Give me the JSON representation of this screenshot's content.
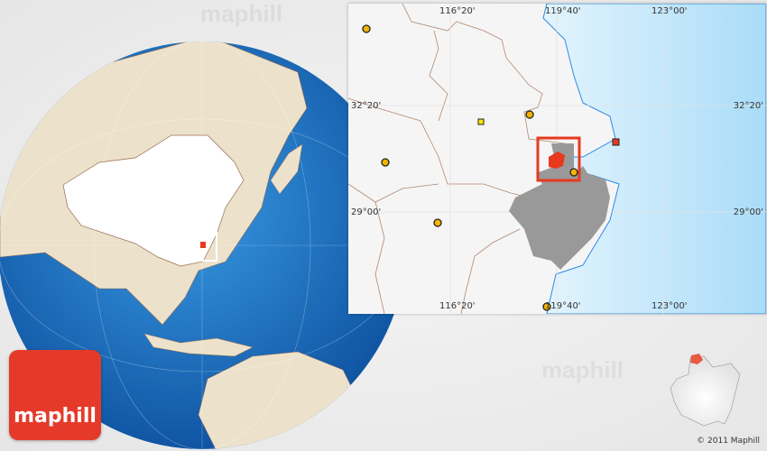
{
  "watermark": "maphill",
  "logo": {
    "text": "maphill",
    "color": "#e53a2a"
  },
  "copyright": "© 2011 Maphill",
  "inset_map": {
    "longitude_labels_top": [
      "116°20'",
      "119°40'",
      "123°00'"
    ],
    "longitude_labels_bottom": [
      "116°20'",
      "119°40'",
      "123°00'"
    ],
    "latitude_labels_left": [
      "32°20'",
      "29°00'"
    ],
    "latitude_labels_right": [
      "32°20'",
      "29°00'"
    ],
    "province_fill": "#999999",
    "highlight_fill": "#e8391f",
    "highlight_frame": "#e8391f",
    "sea_color": "#bfe6fb"
  },
  "colors": {
    "ocean": "#1f74c8",
    "land": "#ede3cf",
    "china": "#ffffff"
  }
}
